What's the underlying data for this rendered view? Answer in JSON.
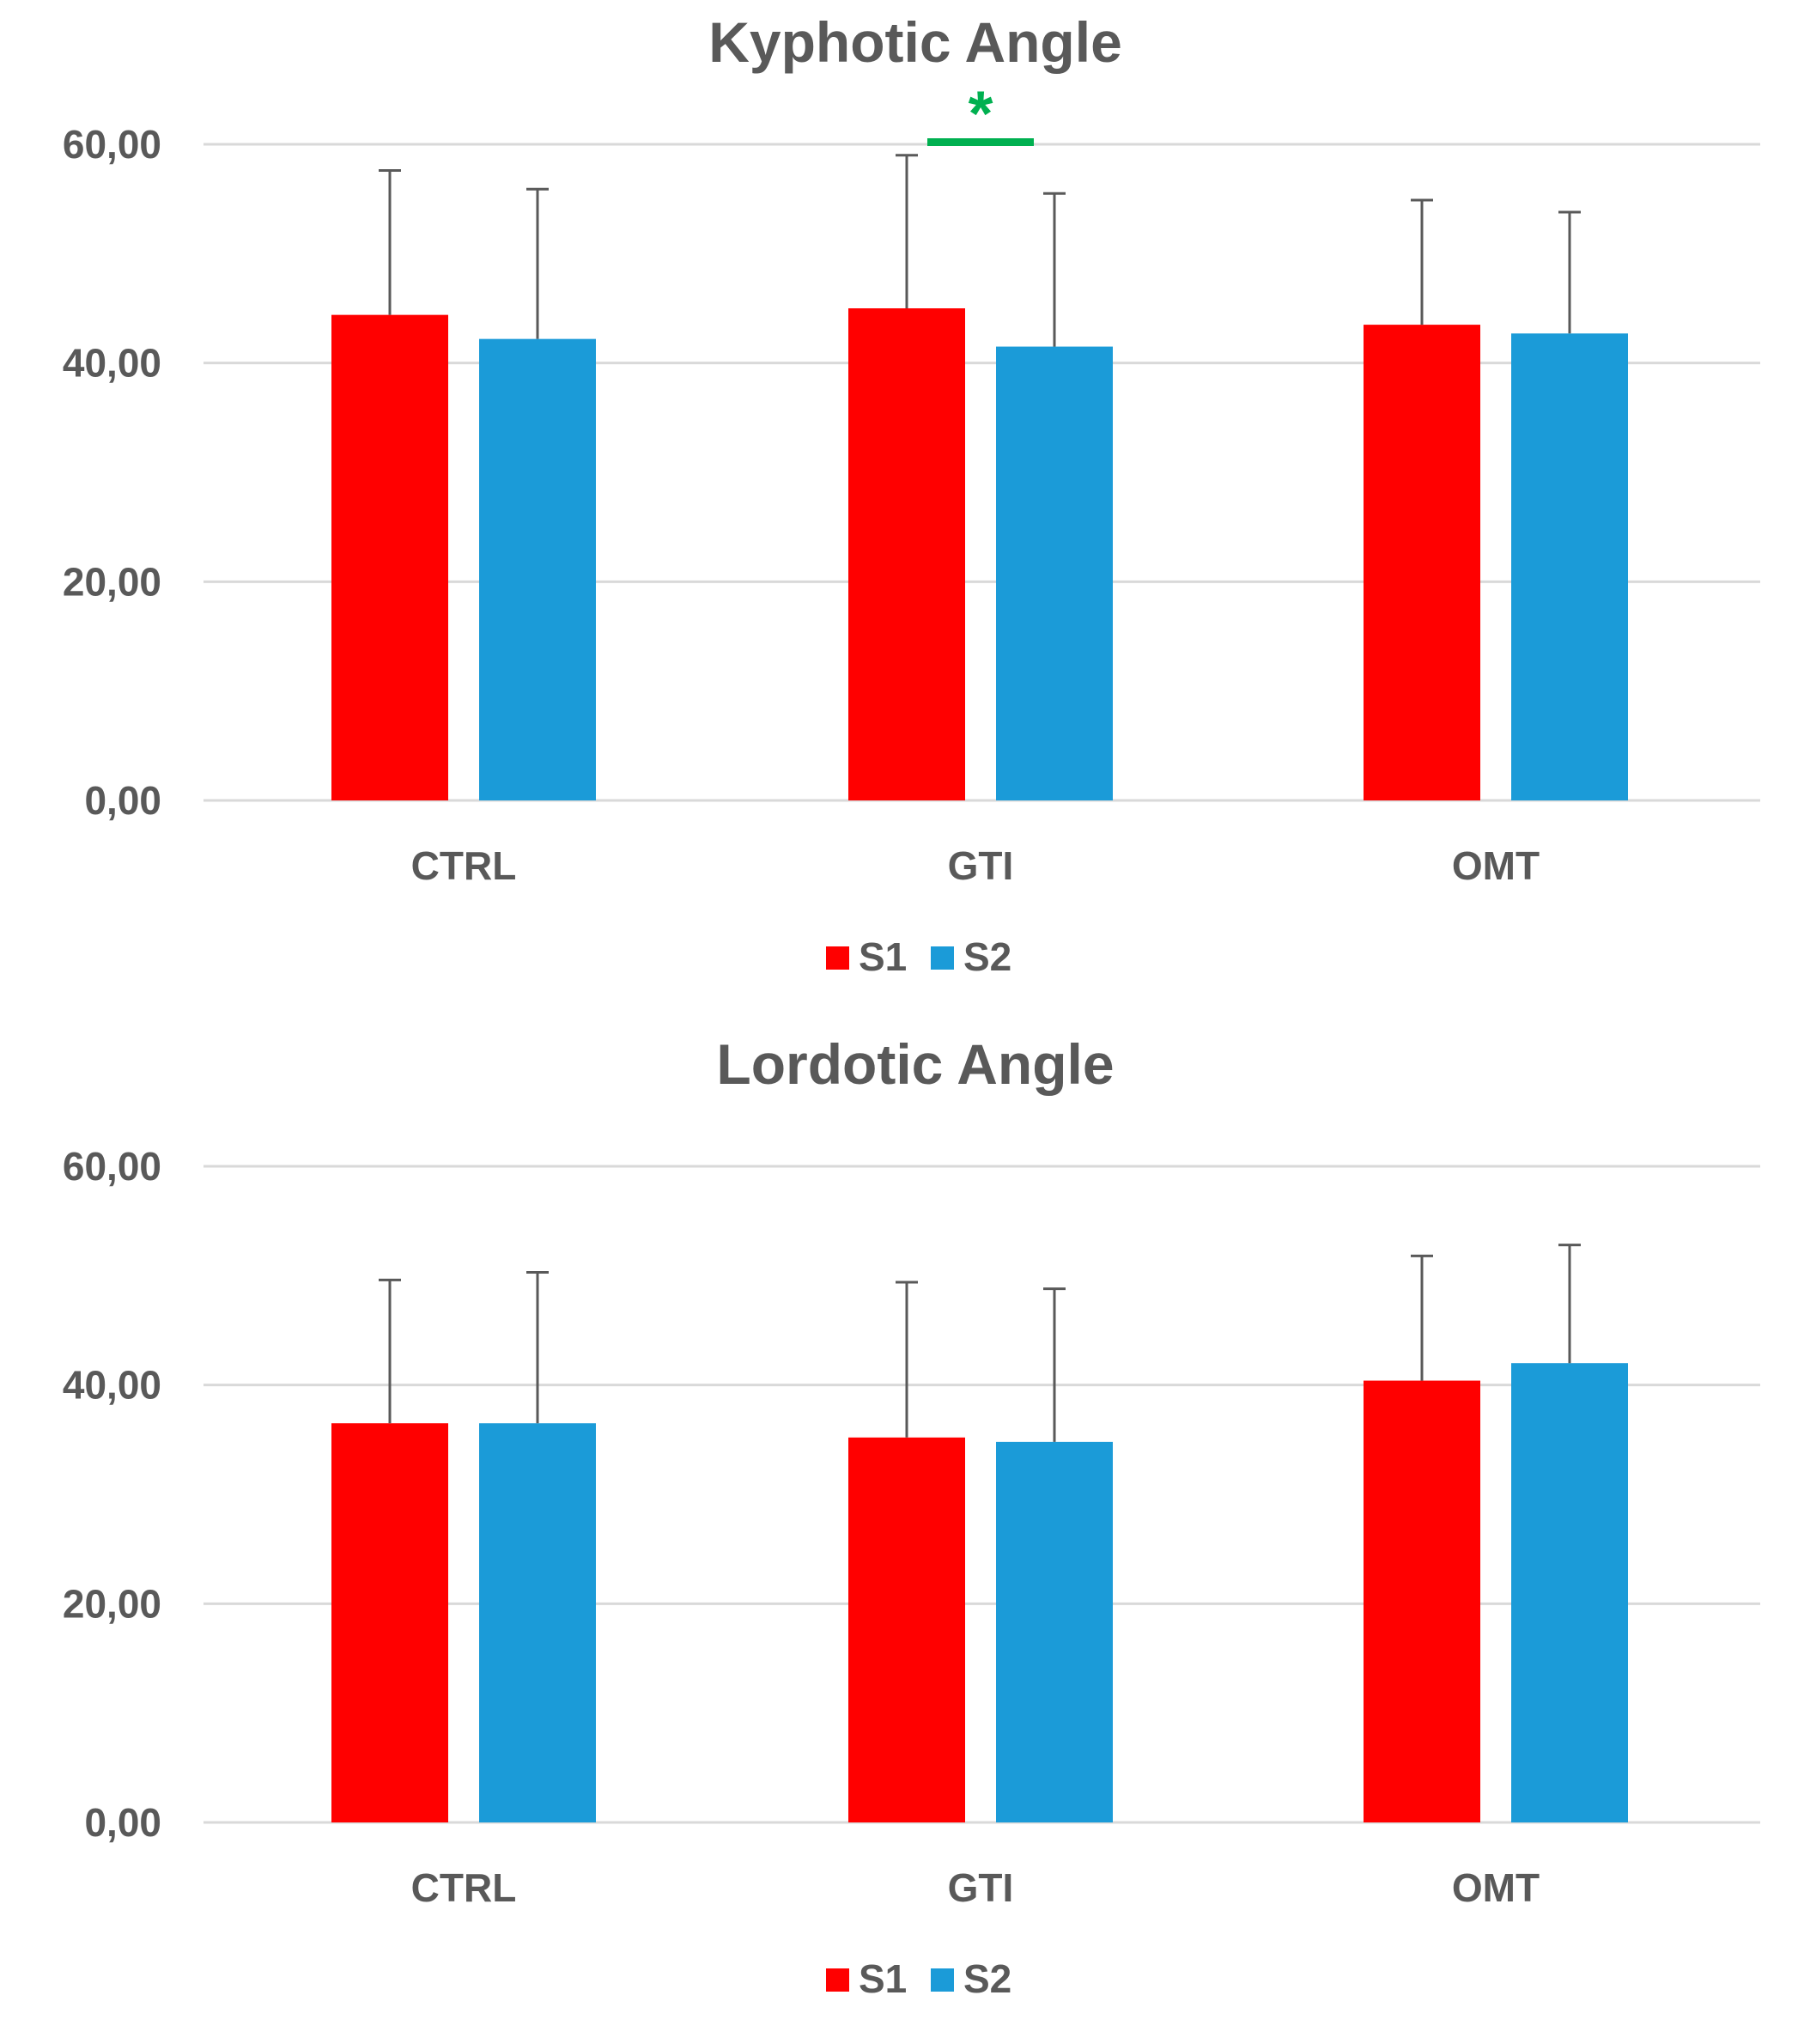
{
  "chart_data": [
    {
      "type": "bar",
      "title": "Kyphotic Angle",
      "categories": [
        "CTRL",
        "GTI",
        "OMT"
      ],
      "ylim": [
        0,
        60
      ],
      "yticks": [
        "0,00",
        "20,00",
        "40,00",
        "60,00"
      ],
      "ytick_values": [
        0,
        20,
        40,
        60
      ],
      "grid": true,
      "legend_position": "bottom",
      "series": [
        {
          "name": "S1",
          "color": "#ff0000",
          "values": [
            44.4,
            45.0,
            43.5
          ],
          "error_upper": [
            57.6,
            59.0,
            54.9
          ]
        },
        {
          "name": "S2",
          "color": "#1b9bd8",
          "values": [
            42.2,
            41.5,
            42.7
          ],
          "error_upper": [
            55.9,
            55.5,
            53.8
          ]
        }
      ],
      "significance": [
        {
          "category": "GTI",
          "label": "*",
          "color": "#00b050",
          "level": 60.2
        }
      ]
    },
    {
      "type": "bar",
      "title": "Lordotic Angle",
      "categories": [
        "CTRL",
        "GTI",
        "OMT"
      ],
      "ylim": [
        0,
        60
      ],
      "yticks": [
        "0,00",
        "20,00",
        "40,00",
        "60,00"
      ],
      "ytick_values": [
        0,
        20,
        40,
        60
      ],
      "grid": true,
      "legend_position": "bottom",
      "series": [
        {
          "name": "S1",
          "color": "#ff0000",
          "values": [
            36.5,
            35.2,
            40.4
          ],
          "error_upper": [
            49.6,
            49.4,
            51.8
          ]
        },
        {
          "name": "S2",
          "color": "#1b9bd8",
          "values": [
            36.5,
            34.8,
            42.0
          ],
          "error_upper": [
            50.3,
            48.8,
            52.8
          ]
        }
      ],
      "significance": []
    }
  ]
}
